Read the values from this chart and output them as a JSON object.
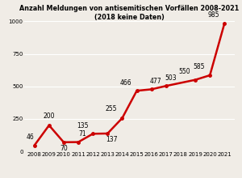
{
  "years": [
    2008,
    2009,
    2010,
    2011,
    2012,
    2013,
    2014,
    2015,
    2016,
    2017,
    2019,
    2020,
    2021
  ],
  "values": [
    46,
    200,
    70,
    71,
    135,
    137,
    255,
    466,
    477,
    503,
    550,
    585,
    985
  ],
  "labels": [
    "46",
    "200",
    "70",
    "71",
    "135",
    "137",
    "255",
    "466",
    "477",
    "503",
    "550",
    "585",
    "985"
  ],
  "all_xtick_years": [
    2008,
    2009,
    2010,
    2011,
    2012,
    2013,
    2014,
    2015,
    2016,
    2017,
    2018,
    2019,
    2020,
    2021
  ],
  "line_color": "#cc0000",
  "title": "Anzahl Meldungen von antisemitischen Vorfällen 2008-2021 (2018 keine Daten)",
  "ylim": [
    0,
    1000
  ],
  "yticks": [
    0,
    250,
    500,
    750,
    1000
  ],
  "background_color": "#f0ece6",
  "title_fontsize": 5.8,
  "label_fontsize": 5.5,
  "tick_fontsize": 5.0
}
